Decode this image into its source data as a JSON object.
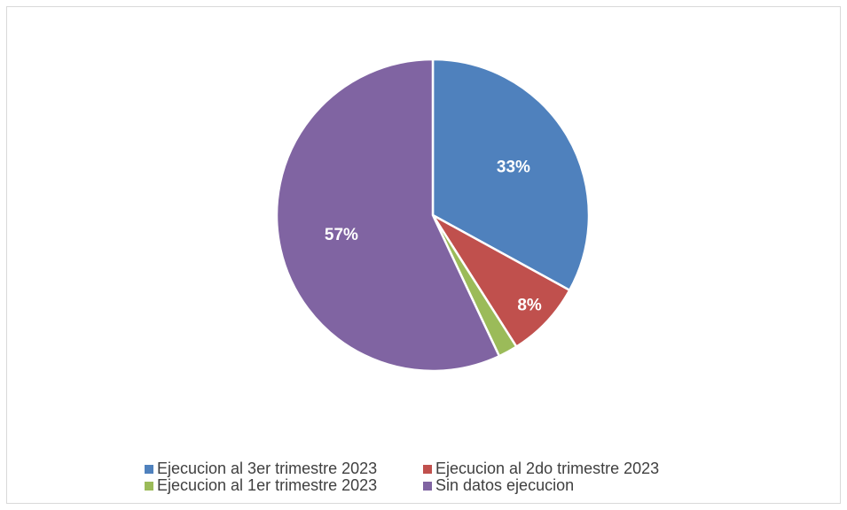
{
  "chart_data": {
    "type": "pie",
    "categories": [
      "Ejecucion al 3er trimestre 2023",
      "Ejecucion al 2do trimestre 2023",
      "Ejecucion al 1er trimestre 2023",
      "Sin datos ejecucion"
    ],
    "values": [
      33,
      8,
      2,
      57
    ],
    "value_labels": [
      "33%",
      "8%",
      null,
      "57%"
    ],
    "colors": [
      "#4f81bd",
      "#c0504d",
      "#9bbb59",
      "#8064a2"
    ],
    "legend": "bottom"
  }
}
